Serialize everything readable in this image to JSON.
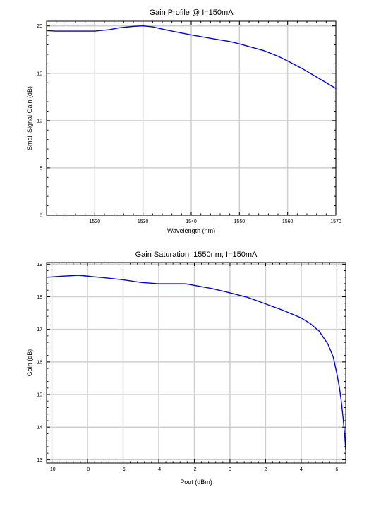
{
  "chart_data": [
    {
      "type": "line",
      "title": "Gain Profile @ I=150mA",
      "xlabel": "Wavelength (nm)",
      "ylabel": "Small Signal Gain (dB)",
      "xlim": [
        1510,
        1570
      ],
      "ylim": [
        0,
        20.5
      ],
      "xticks": [
        1520,
        1530,
        1540,
        1550,
        1560,
        1570
      ],
      "xtick_labels": [
        "1520",
        "1530",
        "1540",
        "1550",
        "1560",
        "1570"
      ],
      "yticks": [
        0,
        5,
        10,
        15,
        20
      ],
      "ytick_labels": [
        "0",
        "5",
        "10",
        "15",
        "20"
      ],
      "grid": true,
      "series": [
        {
          "color": "#0000ee",
          "x": [
            1510,
            1512,
            1515,
            1520,
            1523,
            1525,
            1528,
            1530,
            1532,
            1535,
            1540,
            1545,
            1548,
            1550,
            1555,
            1558,
            1560,
            1563,
            1566,
            1570
          ],
          "y": [
            19.5,
            19.45,
            19.45,
            19.45,
            19.6,
            19.8,
            19.95,
            20.0,
            19.9,
            19.55,
            19.05,
            18.6,
            18.35,
            18.1,
            17.4,
            16.8,
            16.3,
            15.5,
            14.6,
            13.4
          ]
        }
      ]
    },
    {
      "type": "line",
      "title": "Gain Saturation: 1550nm; I=150mA",
      "xlabel": "Pout (dBm)",
      "ylabel": "Gain (dB)",
      "xlim": [
        -10.3,
        6.5
      ],
      "ylim": [
        12.9,
        19.05
      ],
      "xticks": [
        -10,
        -8,
        -6,
        -4,
        -2,
        0,
        2,
        4,
        6
      ],
      "xtick_labels": [
        "-10",
        "-8",
        "-6",
        "-4",
        "-2",
        "0",
        "2",
        "4",
        "6"
      ],
      "yticks": [
        13,
        14,
        15,
        16,
        17,
        18,
        19
      ],
      "ytick_labels": [
        "13",
        "14",
        "15",
        "16",
        "17",
        "18",
        "19"
      ],
      "grid": true,
      "series": [
        {
          "color": "#0000ee",
          "x": [
            -10.3,
            -9.5,
            -8.5,
            -7,
            -6,
            -5,
            -4,
            -2.5,
            -1,
            0,
            1,
            2,
            3,
            4,
            4.5,
            5,
            5.5,
            5.8,
            6.0,
            6.15,
            6.25,
            6.35,
            6.45,
            6.5
          ],
          "y": [
            18.6,
            18.63,
            18.66,
            18.58,
            18.52,
            18.44,
            18.4,
            18.4,
            18.25,
            18.12,
            17.98,
            17.78,
            17.58,
            17.35,
            17.18,
            16.95,
            16.55,
            16.15,
            15.65,
            15.2,
            14.8,
            14.3,
            13.7,
            13.3
          ]
        }
      ]
    }
  ]
}
